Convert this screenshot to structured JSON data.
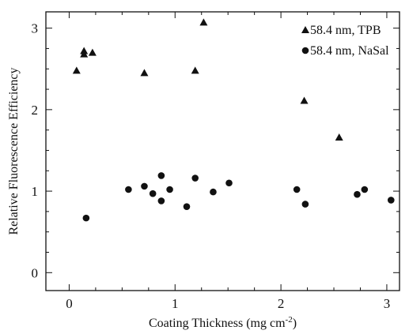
{
  "chart_data": {
    "type": "scatter",
    "xlabel": "Coating Thickness (mg cm",
    "xlabel_sup": "-2",
    "xlabel_suffix": ")",
    "ylabel": "Relative Fluorescence Efficiency",
    "xlim": [
      -0.22,
      3.12
    ],
    "ylim": [
      -0.22,
      3.2
    ],
    "xticks": [
      0,
      1,
      2,
      3
    ],
    "yticks": [
      0,
      1,
      2,
      3
    ],
    "grid": false,
    "legend_position": "top-right",
    "series": [
      {
        "name": "58.4 nm, TPB",
        "marker": "triangle",
        "color": "#111111",
        "x": [
          0.07,
          0.14,
          0.14,
          0.22,
          0.71,
          1.19,
          1.27,
          2.22,
          2.55
        ],
        "y": [
          2.48,
          2.68,
          2.72,
          2.7,
          2.45,
          2.48,
          3.07,
          2.11,
          1.66
        ]
      },
      {
        "name": "58.4 nm, NaSal",
        "marker": "circle",
        "color": "#111111",
        "x": [
          0.16,
          0.56,
          0.71,
          0.79,
          0.87,
          0.87,
          0.95,
          1.11,
          1.19,
          1.36,
          1.51,
          2.15,
          2.23,
          2.72,
          2.79,
          3.04
        ],
        "y": [
          0.67,
          1.02,
          1.06,
          0.97,
          1.19,
          0.88,
          1.02,
          0.81,
          1.16,
          0.99,
          1.1,
          1.02,
          0.84,
          0.96,
          1.02,
          0.89
        ]
      }
    ]
  }
}
